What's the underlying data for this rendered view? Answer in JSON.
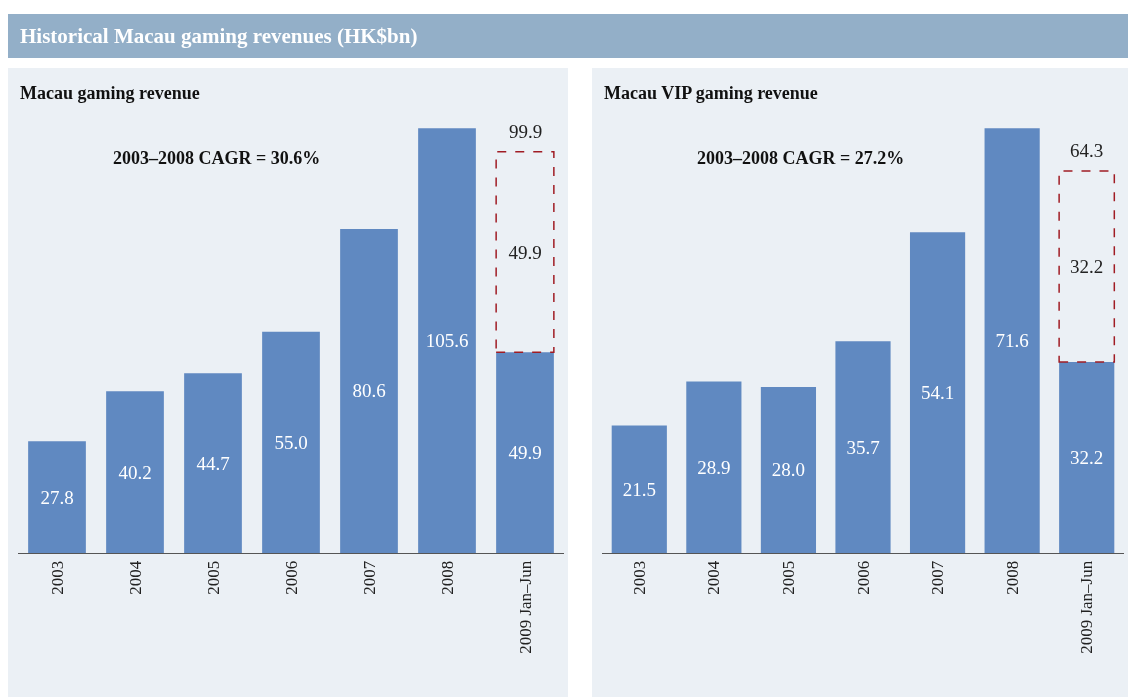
{
  "chart_data": [
    {
      "type": "bar",
      "title": "Historical Macau gaming revenues (HK$bn)",
      "subtitle": "Macau gaming revenue",
      "annotations": [
        "2003–2008 CAGR = 30.6%"
      ],
      "categories": [
        "2003",
        "2004",
        "2005",
        "2006",
        "2007",
        "2008",
        "2009 Jan–Jun"
      ],
      "stacked": true,
      "tick_labels": "x",
      "totals": [
        null,
        null,
        null,
        null,
        null,
        null,
        "99.9"
      ],
      "series": [
        {
          "color": "#6089c1",
          "values": [
            27.8,
            40.2,
            44.7,
            55.0,
            80.6,
            105.6,
            49.9
          ],
          "value_labels": [
            "27.8",
            "40.2",
            "44.7",
            "55.0",
            "80.6",
            "105.6",
            "49.9"
          ]
        },
        {
          "color": "#a01c24",
          "line_style": "dashed",
          "values": [
            null,
            null,
            null,
            null,
            null,
            null,
            49.9
          ],
          "value_labels": [
            null,
            null,
            null,
            null,
            null,
            null,
            "49.9"
          ]
        }
      ]
    },
    {
      "type": "bar",
      "subtitle": "Macau VIP gaming revenue",
      "annotations": [
        "2003–2008 CAGR = 27.2%"
      ],
      "categories": [
        "2003",
        "2004",
        "2005",
        "2006",
        "2007",
        "2008",
        "2009 Jan–Jun"
      ],
      "stacked": true,
      "tick_labels": "x",
      "totals": [
        null,
        null,
        null,
        null,
        null,
        null,
        "64.3"
      ],
      "series": [
        {
          "color": "#6089c1",
          "values": [
            21.5,
            28.9,
            28.0,
            35.7,
            54.1,
            71.6,
            32.2
          ],
          "value_labels": [
            "21.5",
            "28.9",
            "28.0",
            "35.7",
            "54.1",
            "71.6",
            "32.2"
          ]
        },
        {
          "color": "#a01c24",
          "line_style": "dashed",
          "values": [
            null,
            null,
            null,
            null,
            null,
            null,
            32.2
          ],
          "value_labels": [
            null,
            null,
            null,
            null,
            null,
            null,
            "32.2"
          ]
        }
      ]
    }
  ]
}
